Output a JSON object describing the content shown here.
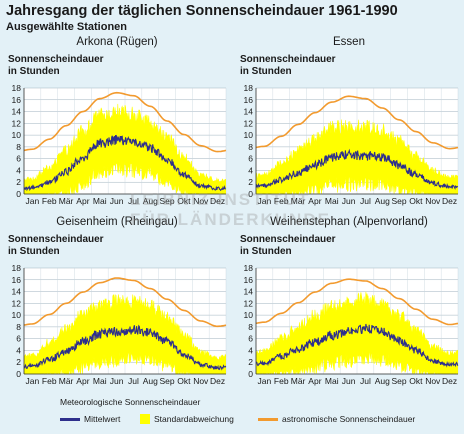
{
  "header": {
    "title": "Jahresgang der täglichen Sonnenscheindauer 1961-1990",
    "subtitle": "Ausgewählte Stationen"
  },
  "ylabel_line1": "Sonnenscheindauer",
  "ylabel_line2": "in Stunden",
  "legend": {
    "title": "Meteorologische Sonnenscheindauer",
    "mean": "Mittelwert",
    "std": "Standardabweichung",
    "astro": "astronomische Sonnenscheindauer"
  },
  "watermark": {
    "line1": "LEIBNIZ-INSTITUT",
    "line2": "FÜR LÄNDERKUNDE"
  },
  "colors": {
    "mean": "#2e2f8c",
    "std": "#ffff00",
    "astro": "#f29a2e",
    "background": "#e3f1f7"
  },
  "chart_data": [
    {
      "type": "line",
      "title": "Arkona (Rügen)",
      "ylabel": "Sonnenscheindauer in Stunden",
      "categories": [
        "Jan",
        "Feb",
        "Mär",
        "Apr",
        "Mai",
        "Jun",
        "Jul",
        "Aug",
        "Sep",
        "Okt",
        "Nov",
        "Dez"
      ],
      "yticks": [
        0,
        2,
        4,
        6,
        8,
        10,
        12,
        14,
        16,
        18
      ],
      "ylim": [
        0,
        18
      ],
      "grid": true,
      "series": [
        {
          "name": "Mittelwert",
          "values": [
            1.0,
            2.0,
            3.8,
            6.2,
            8.5,
            9.2,
            8.8,
            7.8,
            5.8,
            3.2,
            1.4,
            0.9
          ]
        },
        {
          "name": "Standardabweichung",
          "values": [
            1.6,
            2.4,
            3.6,
            4.4,
            4.8,
            4.8,
            4.8,
            4.3,
            3.8,
            3.0,
            1.8,
            1.4
          ]
        },
        {
          "name": "astronomische Sonnenscheindauer",
          "values": [
            7.6,
            9.3,
            11.6,
            14.0,
            16.2,
            17.2,
            16.7,
            14.9,
            12.4,
            10.1,
            8.2,
            7.2
          ]
        }
      ]
    },
    {
      "type": "line",
      "title": "Essen",
      "ylabel": "Sonnenscheindauer in Stunden",
      "categories": [
        "Jan",
        "Feb",
        "Mär",
        "Apr",
        "Mai",
        "Jun",
        "Jul",
        "Aug",
        "Sep",
        "Okt",
        "Nov",
        "Dez"
      ],
      "yticks": [
        0,
        2,
        4,
        6,
        8,
        10,
        12,
        14,
        16,
        18
      ],
      "ylim": [
        0,
        18
      ],
      "grid": true,
      "series": [
        {
          "name": "Mittelwert",
          "values": [
            1.4,
            2.4,
            3.6,
            5.0,
            6.3,
            6.6,
            6.5,
            6.3,
            4.9,
            3.3,
            1.8,
            1.2
          ]
        },
        {
          "name": "Standardabweichung",
          "values": [
            1.8,
            2.8,
            3.6,
            4.3,
            4.8,
            4.9,
            4.8,
            4.5,
            4.1,
            3.2,
            2.2,
            1.6
          ]
        },
        {
          "name": "astronomische Sonnenscheindauer",
          "values": [
            8.1,
            9.8,
            11.8,
            13.8,
            15.6,
            16.6,
            16.2,
            14.6,
            12.6,
            10.6,
            8.7,
            7.7
          ]
        }
      ]
    },
    {
      "type": "line",
      "title": "Geisenheim (Rheingau)",
      "ylabel": "Sonnenscheindauer in Stunden",
      "categories": [
        "Jan",
        "Feb",
        "Mär",
        "Apr",
        "Mai",
        "Jun",
        "Jul",
        "Aug",
        "Sep",
        "Okt",
        "Nov",
        "Dez"
      ],
      "yticks": [
        0,
        2,
        4,
        6,
        8,
        10,
        12,
        14,
        16,
        18
      ],
      "ylim": [
        0,
        18
      ],
      "grid": true,
      "series": [
        {
          "name": "Mittelwert",
          "values": [
            1.3,
            2.5,
            3.8,
            5.6,
            6.8,
            7.3,
            7.5,
            7.0,
            5.5,
            3.4,
            1.6,
            1.1
          ]
        },
        {
          "name": "Standardabweichung",
          "values": [
            1.8,
            2.8,
            3.7,
            4.4,
            4.8,
            4.9,
            4.8,
            4.5,
            4.1,
            3.3,
            2.1,
            1.6
          ]
        },
        {
          "name": "astronomische Sonnenscheindauer",
          "values": [
            8.5,
            10.1,
            12.0,
            13.9,
            15.5,
            16.3,
            15.9,
            14.5,
            12.7,
            10.8,
            9.0,
            8.1
          ]
        }
      ]
    },
    {
      "type": "line",
      "title": "Weihenstephan (Alpenvorland)",
      "ylabel": "Sonnenscheindauer in Stunden",
      "categories": [
        "Jan",
        "Feb",
        "Mär",
        "Apr",
        "Mai",
        "Jun",
        "Jul",
        "Aug",
        "Sep",
        "Okt",
        "Nov",
        "Dez"
      ],
      "yticks": [
        0,
        2,
        4,
        6,
        8,
        10,
        12,
        14,
        16,
        18
      ],
      "ylim": [
        0,
        18
      ],
      "grid": true,
      "series": [
        {
          "name": "Mittelwert",
          "values": [
            1.8,
            3.0,
            4.2,
            5.4,
            6.6,
            7.2,
            7.8,
            7.1,
            5.7,
            4.0,
            2.2,
            1.6
          ]
        },
        {
          "name": "Standardabweichung",
          "values": [
            2.0,
            3.0,
            3.8,
            4.4,
            4.8,
            4.9,
            4.9,
            4.6,
            4.2,
            3.5,
            2.4,
            1.9
          ]
        },
        {
          "name": "astronomische Sonnenscheindauer",
          "values": [
            8.8,
            10.3,
            12.1,
            13.9,
            15.4,
            16.1,
            15.8,
            14.5,
            12.8,
            11.0,
            9.3,
            8.4
          ]
        }
      ]
    }
  ]
}
